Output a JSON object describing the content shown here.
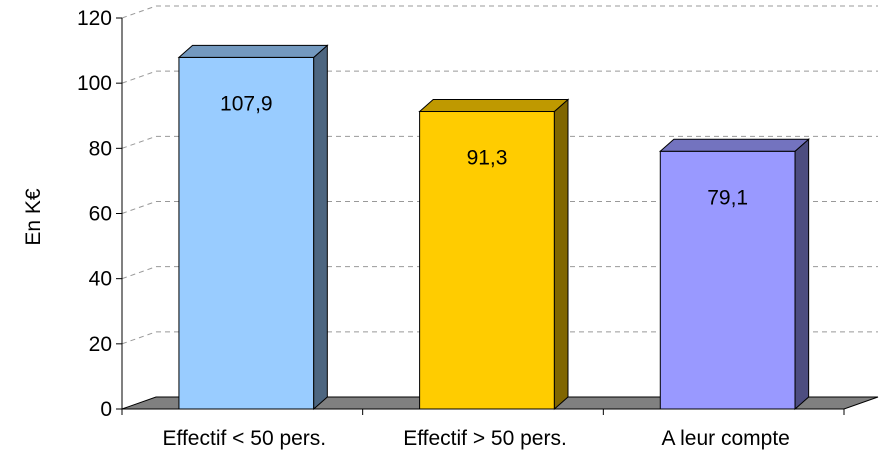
{
  "chart_data": {
    "type": "bar",
    "title": "",
    "ylabel": "En K€",
    "xlabel": "",
    "categories": [
      "Effectif < 50 pers.",
      "Effectif > 50 pers.",
      "A leur compte"
    ],
    "values": [
      107.9,
      91.3,
      79.1
    ],
    "value_labels": [
      "107,9",
      "91,3",
      "79,1"
    ],
    "ylim": [
      0,
      120
    ],
    "yticks": [
      0,
      20,
      40,
      60,
      80,
      100,
      120
    ],
    "grid": true,
    "legend": "none",
    "style": "3d-column",
    "colors": [
      "#99ccff",
      "#ffcc00",
      "#9999ff"
    ]
  }
}
